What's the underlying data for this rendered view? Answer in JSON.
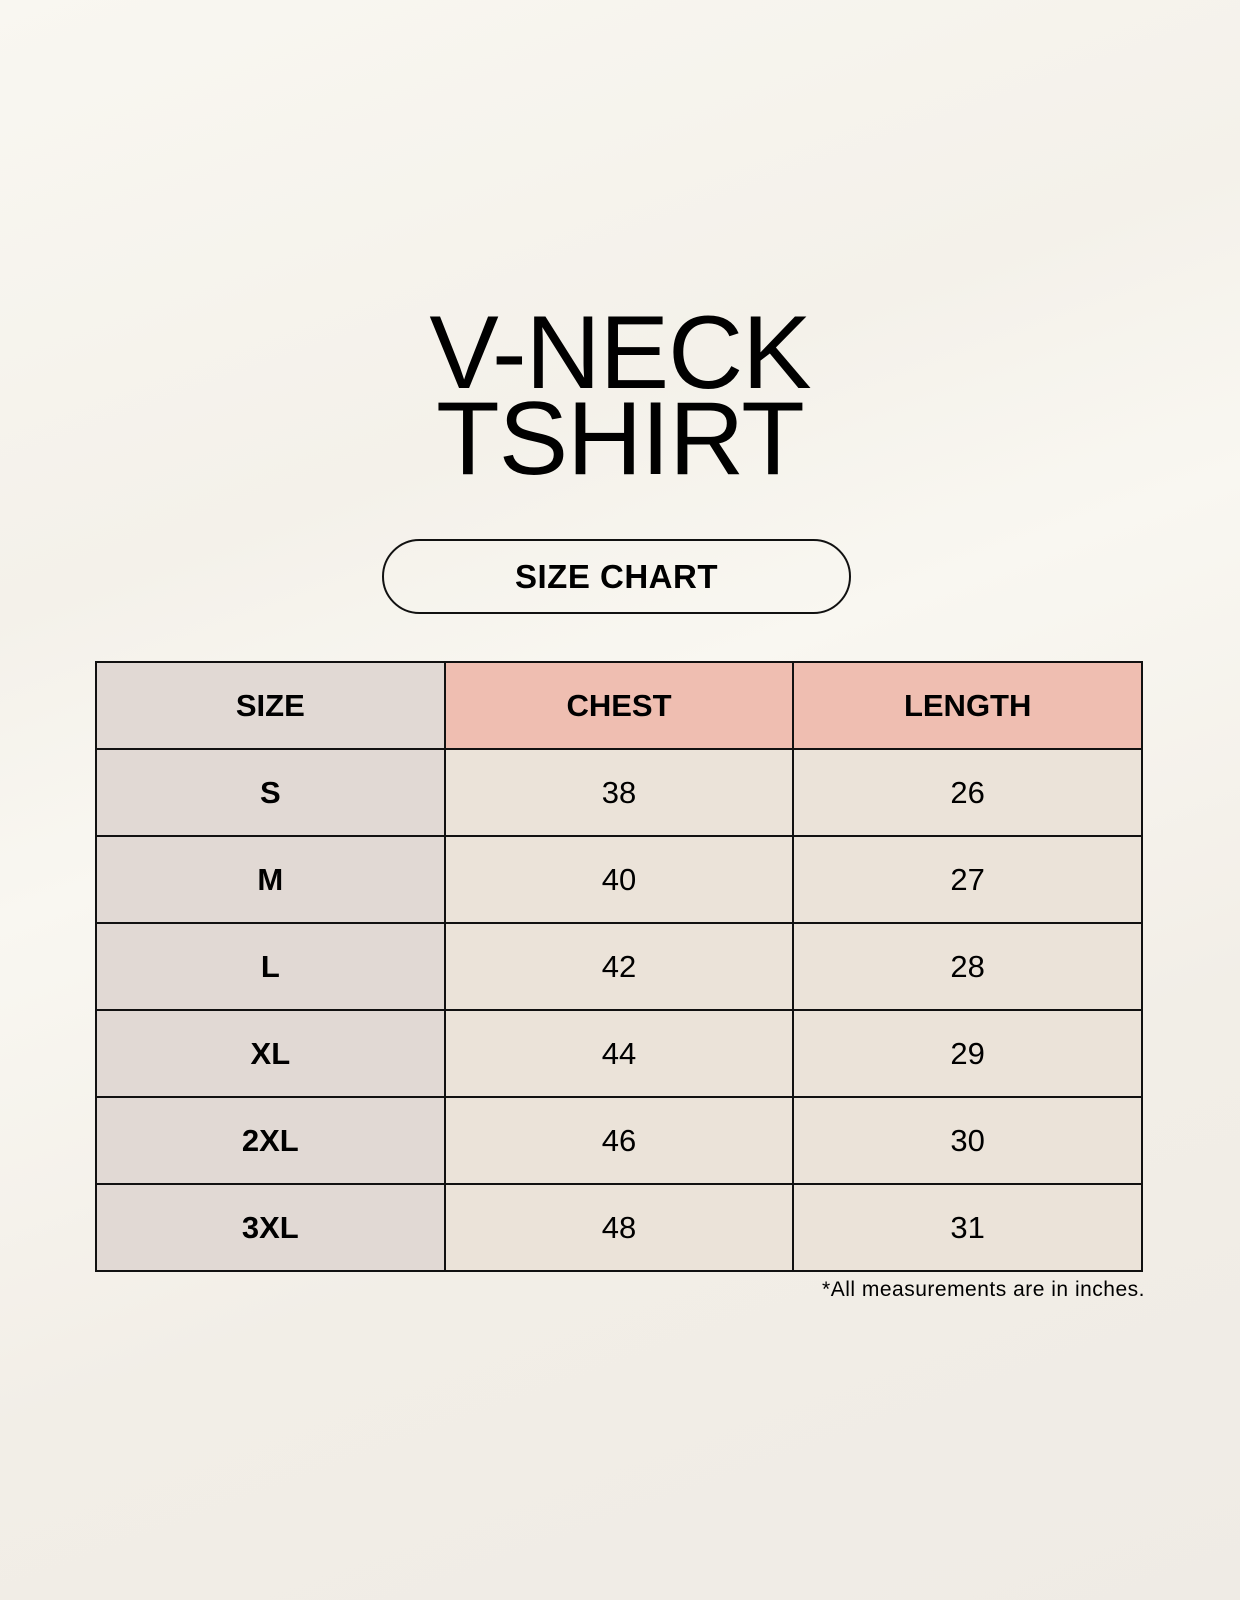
{
  "title": {
    "line1": "V-NECK",
    "line2": "TSHIRT"
  },
  "badge": "SIZE CHART",
  "table": {
    "headers": [
      "SIZE",
      "CHEST",
      "LENGTH"
    ],
    "rows": [
      [
        "S",
        "38",
        "26"
      ],
      [
        "M",
        "40",
        "27"
      ],
      [
        "L",
        "42",
        "28"
      ],
      [
        "XL",
        "44",
        "29"
      ],
      [
        "2XL",
        "46",
        "30"
      ],
      [
        "3XL",
        "48",
        "31"
      ]
    ]
  },
  "footnote": "*All measurements are in inches.",
  "colors": {
    "size_column": "#e1d9d4",
    "header_accent": "#efbeb1",
    "value_cells": "#ebe3d9",
    "border": "#111111"
  }
}
